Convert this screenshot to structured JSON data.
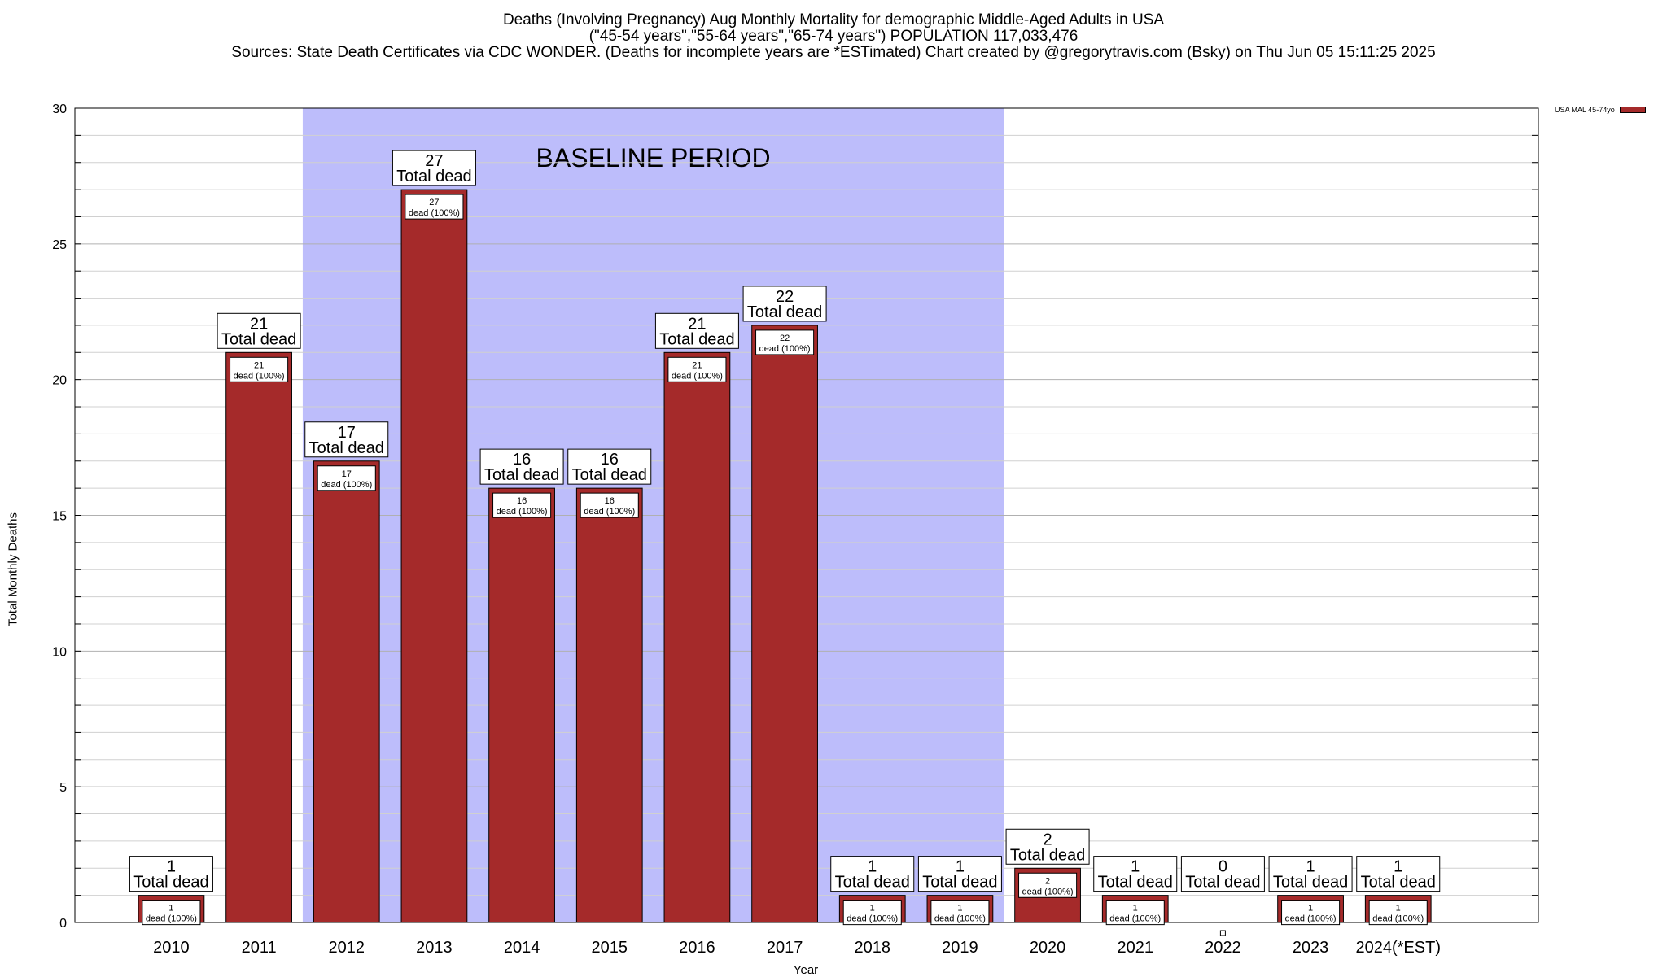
{
  "header": {
    "title_line1": "Deaths (Involving Pregnancy) Aug Monthly Mortality for demographic Middle-Aged Adults in USA",
    "title_line2": "(\"45-54 years\",\"55-64 years\",\"65-74 years\") POPULATION 117,033,476",
    "title_line3": "Sources: State Death Certificates via CDC WONDER. (Deaths for incomplete years are *ESTimated)                Chart created by @gregorytravis.com (Bsky) on Thu Jun 05 15:11:25 2025"
  },
  "chart_data": {
    "type": "bar",
    "title": "Deaths (Involving Pregnancy) Aug Monthly Mortality for demographic Middle-Aged Adults in USA",
    "xlabel": "Year",
    "ylabel": "Total Monthly Deaths",
    "ylim": [
      0,
      30
    ],
    "y_major_ticks": [
      0,
      5,
      10,
      15,
      20,
      25,
      30
    ],
    "y_minor_step": 1,
    "grid": true,
    "legend_position": "top-right",
    "categories": [
      "2010",
      "2011",
      "2012",
      "2013",
      "2014",
      "2015",
      "2016",
      "2017",
      "2018",
      "2019",
      "2020",
      "2021",
      "2022",
      "2023",
      "2024(*EST)"
    ],
    "series": [
      {
        "name": "USA MAL 45-74yo",
        "color": "#a52a2a",
        "values": [
          1,
          21,
          17,
          27,
          16,
          16,
          21,
          22,
          1,
          1,
          2,
          1,
          0,
          1,
          1
        ]
      }
    ],
    "total_label_text": "Total dead",
    "inner_label_text": "dead (100%)",
    "baseline_period": {
      "label": "BASELINE PERIOD",
      "start_category": "2012",
      "end_category": "2019",
      "color": "#bdbdfb"
    }
  }
}
